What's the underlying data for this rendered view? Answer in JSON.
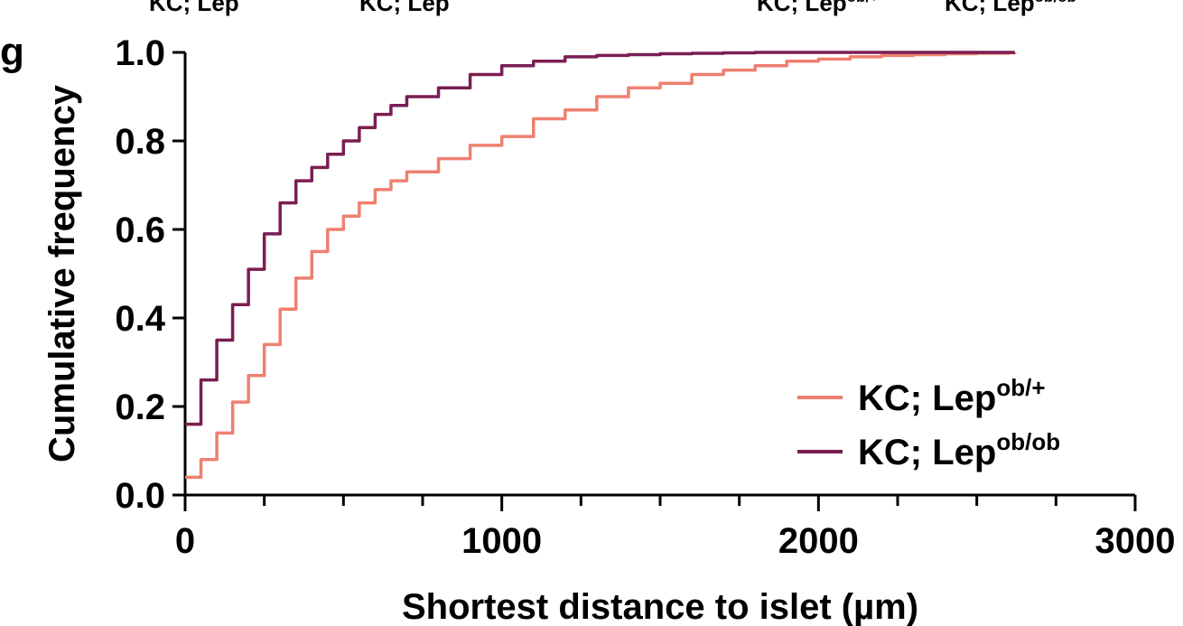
{
  "panel_label": "g",
  "top_labels": [
    {
      "base": "KC; Lep",
      "sup": ""
    },
    {
      "base": "KC; Lep",
      "sup": ""
    },
    {
      "base": "KC; Lep",
      "sup": "ob/+"
    },
    {
      "base": "KC; Lep",
      "sup": "ob/ob"
    }
  ],
  "chart_data": {
    "type": "line",
    "title": "",
    "xlabel": "Shortest distance to islet (µm)",
    "ylabel": "Cumulative frequency",
    "xlim": [
      0,
      3000
    ],
    "ylim": [
      0,
      1.0
    ],
    "x_ticks": [
      "0",
      "1000",
      "2000",
      "3000"
    ],
    "y_ticks": [
      "0.0",
      "0.2",
      "0.4",
      "0.6",
      "0.8",
      "1.0"
    ],
    "grid": false,
    "legend_position": "bottom-right",
    "series": [
      {
        "name_base": "KC; Lep",
        "name_sup": "ob/+",
        "color": "#EE8070",
        "x": [
          0,
          50,
          100,
          150,
          200,
          250,
          300,
          350,
          400,
          450,
          500,
          550,
          600,
          650,
          700,
          800,
          900,
          1000,
          1100,
          1200,
          1300,
          1400,
          1500,
          1600,
          1700,
          1800,
          1900,
          2000,
          2100,
          2200,
          2300,
          2400,
          2500,
          2600,
          2620
        ],
        "values": [
          0.04,
          0.08,
          0.14,
          0.21,
          0.27,
          0.34,
          0.42,
          0.49,
          0.55,
          0.6,
          0.63,
          0.66,
          0.69,
          0.71,
          0.73,
          0.76,
          0.79,
          0.81,
          0.85,
          0.87,
          0.9,
          0.92,
          0.93,
          0.95,
          0.96,
          0.97,
          0.98,
          0.985,
          0.99,
          0.993,
          0.995,
          0.997,
          0.998,
          0.999,
          1.0
        ]
      },
      {
        "name_base": "KC; Lep",
        "name_sup": "ob/ob",
        "color": "#7A1E52",
        "x": [
          0,
          50,
          100,
          150,
          200,
          250,
          300,
          350,
          400,
          450,
          500,
          550,
          600,
          650,
          700,
          800,
          900,
          1000,
          1100,
          1200,
          1300,
          1400,
          1500,
          1600,
          1700,
          1800,
          1900,
          2000,
          2200,
          2400,
          2620
        ],
        "values": [
          0.16,
          0.26,
          0.35,
          0.43,
          0.51,
          0.59,
          0.66,
          0.71,
          0.74,
          0.77,
          0.8,
          0.83,
          0.86,
          0.88,
          0.9,
          0.92,
          0.95,
          0.97,
          0.98,
          0.99,
          0.993,
          0.995,
          0.997,
          0.998,
          0.999,
          1.0,
          1.0,
          1.0,
          1.0,
          1.0,
          1.0
        ]
      }
    ]
  }
}
